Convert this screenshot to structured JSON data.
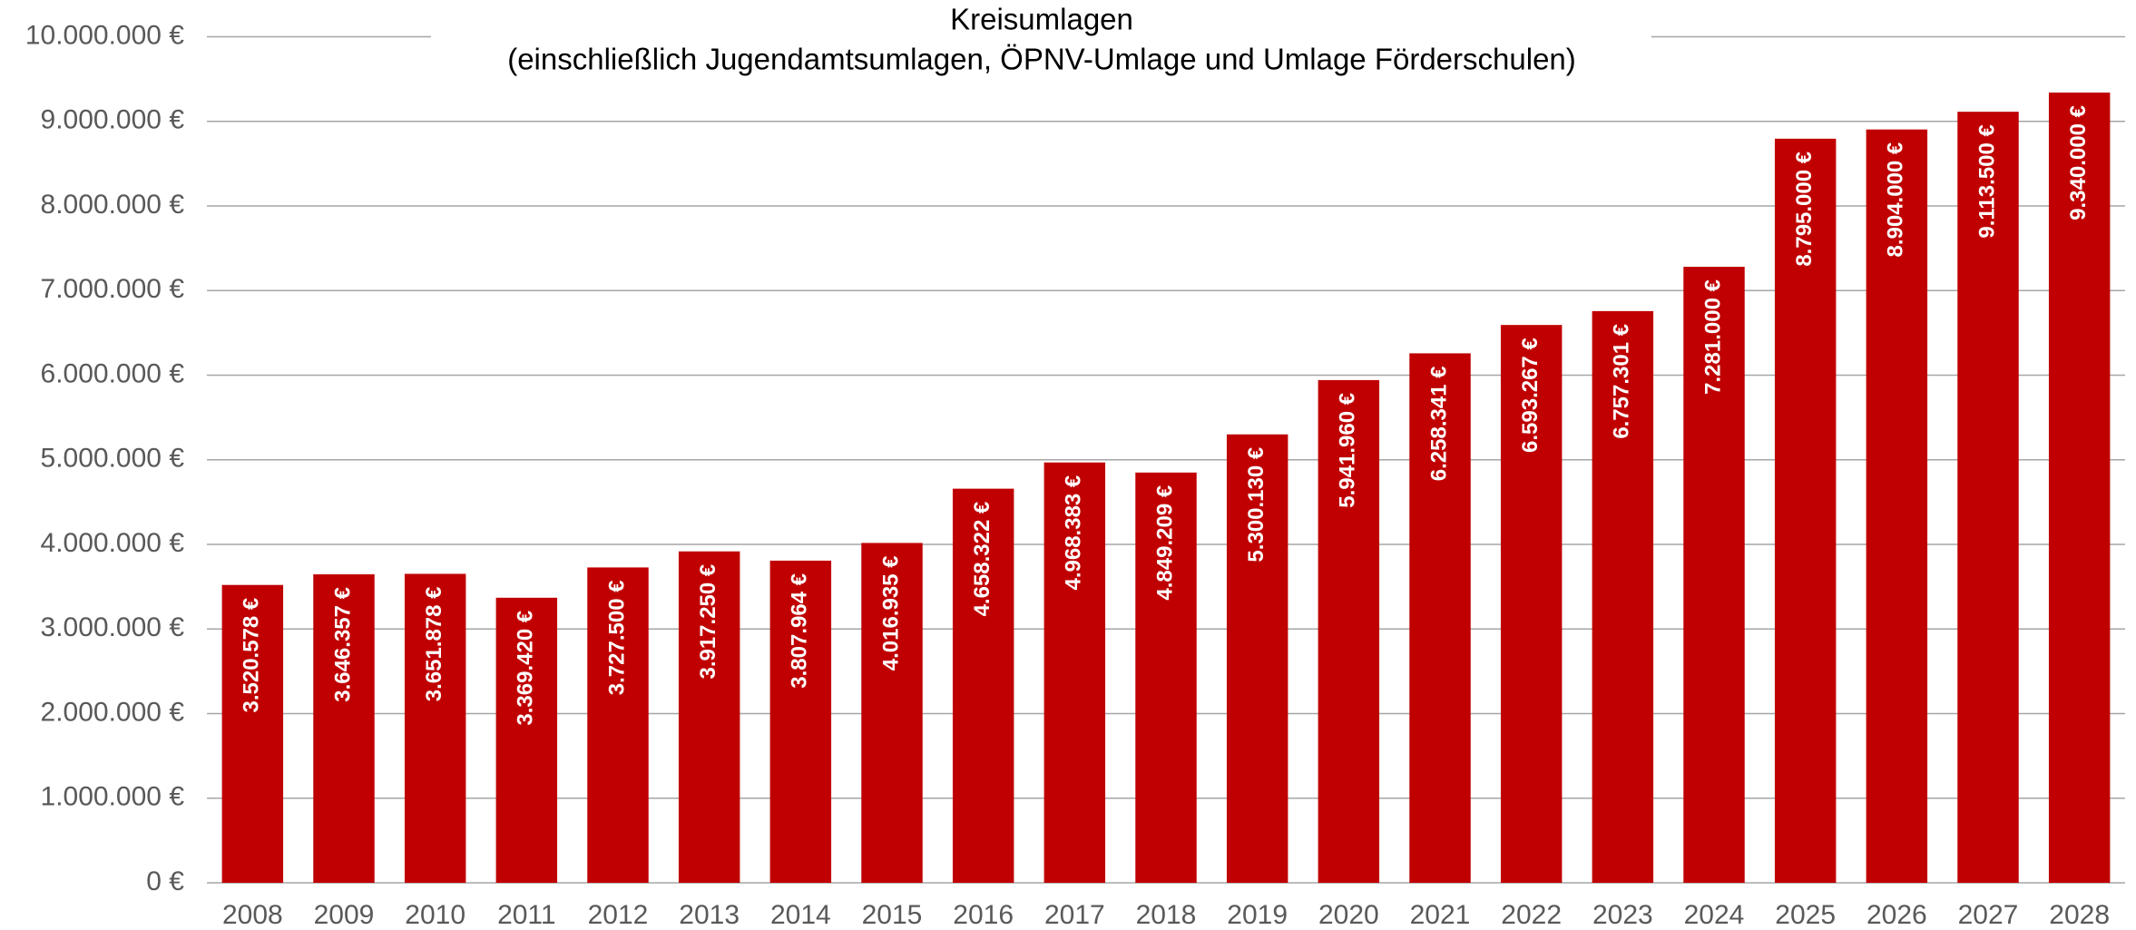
{
  "chart_data": {
    "type": "bar",
    "title": "Kreisumlagen",
    "subtitle": "(einschließlich Jugendamtsumlagen, ÖPNV-Umlage und Umlage Förderschulen)",
    "categories": [
      "2008",
      "2009",
      "2010",
      "2011",
      "2012",
      "2013",
      "2014",
      "2015",
      "2016",
      "2017",
      "2018",
      "2019",
      "2020",
      "2021",
      "2022",
      "2023",
      "2024",
      "2025",
      "2026",
      "2027",
      "2028"
    ],
    "values": [
      3520578,
      3646357,
      3651878,
      3369420,
      3727500,
      3917250,
      3807964,
      4016935,
      4658322,
      4968383,
      4849209,
      5300130,
      5941960,
      6258341,
      6593267,
      6757301,
      7281000,
      8795000,
      8904000,
      9113500,
      9340000
    ],
    "value_labels": [
      "3.520.578 €",
      "3.646.357 €",
      "3.651.878 €",
      "3.369.420 €",
      "3.727.500 €",
      "3.917.250 €",
      "3.807.964 €",
      "4.016.935 €",
      "4.658.322 €",
      "4.968.383 €",
      "4.849.209 €",
      "5.300.130 €",
      "5.941.960 €",
      "6.258.341 €",
      "6.593.267 €",
      "6.757.301 €",
      "7.281.000 €",
      "8.795.000 €",
      "8.904.000 €",
      "9.113.500 €",
      "9.340.000 €"
    ],
    "color": "#c00000",
    "ylim": [
      0,
      10000000
    ],
    "yticks": [
      {
        "value": 0,
        "label": "0 €"
      },
      {
        "value": 1000000,
        "label": "1.000.000 €"
      },
      {
        "value": 2000000,
        "label": "2.000.000 €"
      },
      {
        "value": 3000000,
        "label": "3.000.000 €"
      },
      {
        "value": 4000000,
        "label": "4.000.000 €"
      },
      {
        "value": 5000000,
        "label": "5.000.000 €"
      },
      {
        "value": 6000000,
        "label": "6.000.000 €"
      },
      {
        "value": 7000000,
        "label": "7.000.000 €"
      },
      {
        "value": 8000000,
        "label": "8.000.000 €"
      },
      {
        "value": 9000000,
        "label": "9.000.000 €"
      },
      {
        "value": 10000000,
        "label": "10.000.000 €"
      }
    ],
    "grid": true
  }
}
